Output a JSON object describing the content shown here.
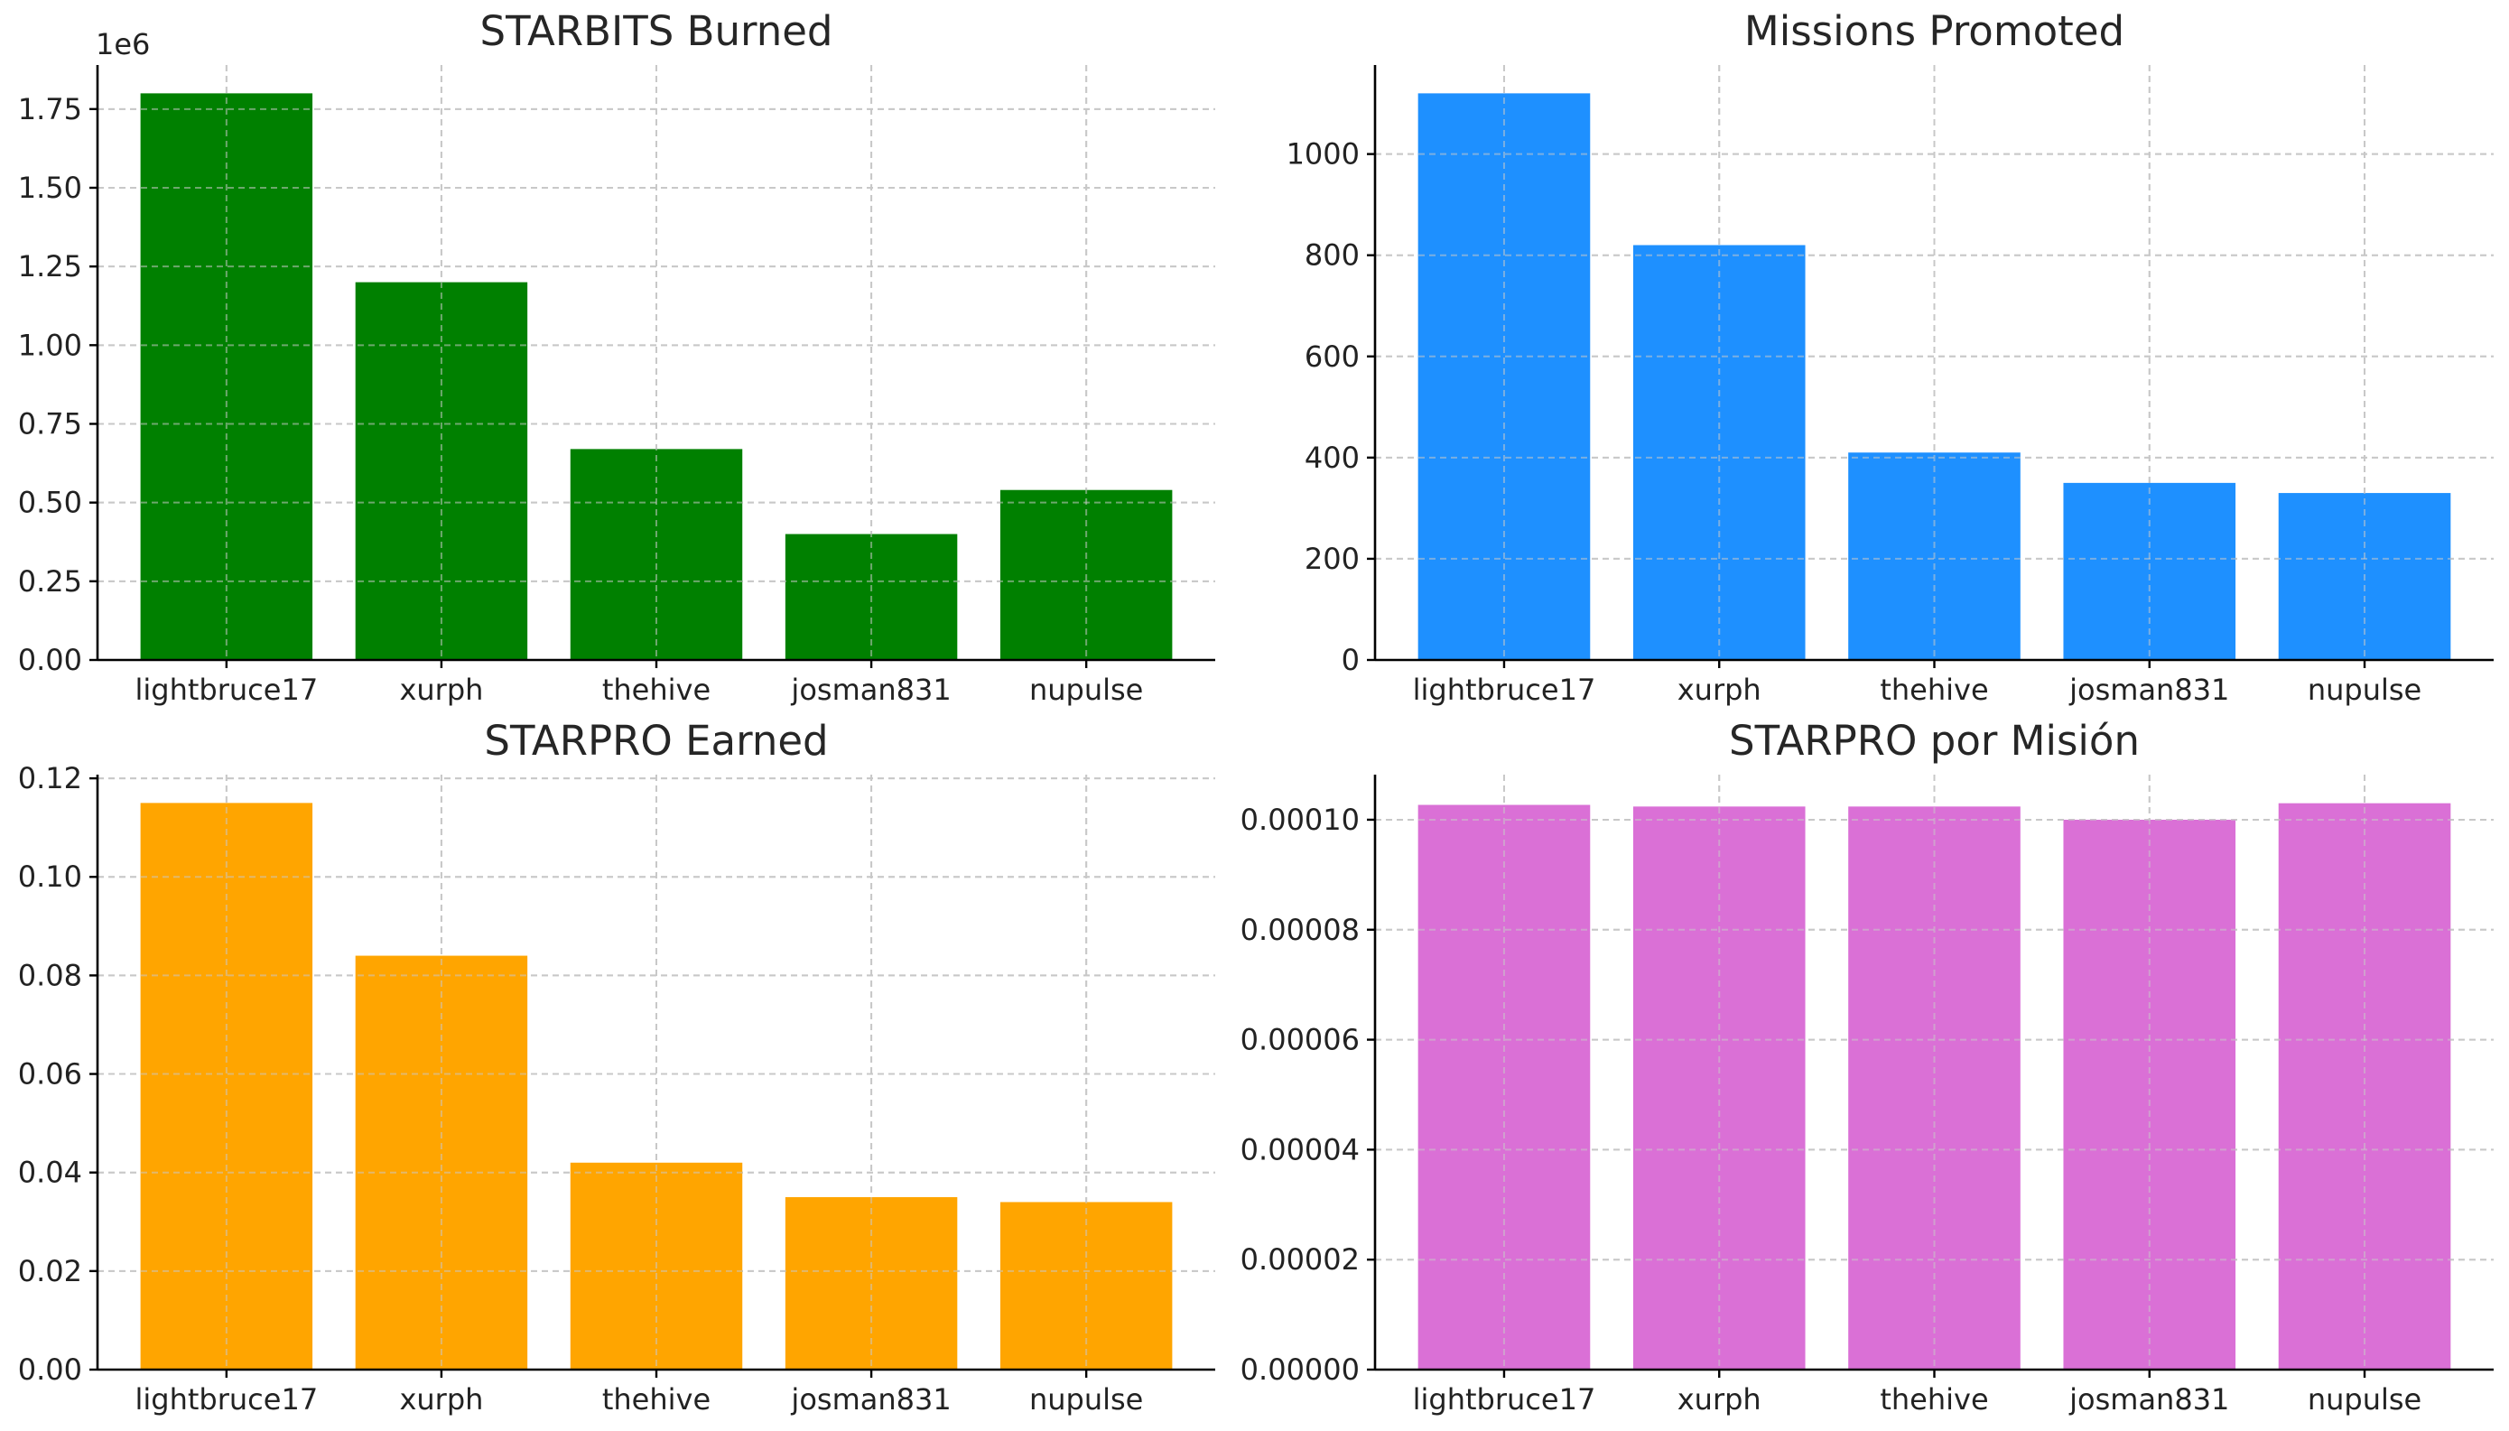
{
  "chart_data": [
    {
      "type": "bar",
      "title": "STARBITS Burned",
      "categories": [
        "lightbruce17",
        "xurph",
        "thehive",
        "josman831",
        "nupulse"
      ],
      "values": [
        1800000,
        1200000,
        670000,
        400000,
        540000
      ],
      "ylim": [
        0,
        1890000
      ],
      "yticks": [
        0,
        250000,
        500000,
        750000,
        1000000,
        1250000,
        1500000,
        1750000
      ],
      "ytick_labels": [
        "0.00",
        "0.25",
        "0.50",
        "0.75",
        "1.00",
        "1.25",
        "1.50",
        "1.75"
      ],
      "offset_label": "1e6",
      "color": "#008000",
      "grid": true
    },
    {
      "type": "bar",
      "title": "Missions Promoted",
      "categories": [
        "lightbruce17",
        "xurph",
        "thehive",
        "josman831",
        "nupulse"
      ],
      "values": [
        1120,
        820,
        410,
        350,
        330
      ],
      "ylim": [
        0,
        1176
      ],
      "yticks": [
        0,
        200,
        400,
        600,
        800,
        1000
      ],
      "ytick_labels": [
        "0",
        "200",
        "400",
        "600",
        "800",
        "1000"
      ],
      "color": "#1e90ff",
      "grid": true
    },
    {
      "type": "bar",
      "title": "STARPRO Earned",
      "categories": [
        "lightbruce17",
        "xurph",
        "thehive",
        "josman831",
        "nupulse"
      ],
      "values": [
        0.115,
        0.084,
        0.042,
        0.035,
        0.034
      ],
      "ylim": [
        0,
        0.12075
      ],
      "yticks": [
        0,
        0.02,
        0.04,
        0.06,
        0.08,
        0.1,
        0.12
      ],
      "ytick_labels": [
        "0.00",
        "0.02",
        "0.04",
        "0.06",
        "0.08",
        "0.10",
        "0.12"
      ],
      "color": "#ffa500",
      "grid": true
    },
    {
      "type": "bar",
      "title": "STARPRO por Misión",
      "categories": [
        "lightbruce17",
        "xurph",
        "thehive",
        "josman831",
        "nupulse"
      ],
      "values": [
        0.0001027,
        0.0001024,
        0.0001024,
        0.0001,
        0.000103
      ],
      "ylim": [
        0,
        0.0001082
      ],
      "yticks": [
        0,
        2e-05,
        4e-05,
        6e-05,
        8e-05,
        0.0001
      ],
      "ytick_labels": [
        "0.00000",
        "0.00002",
        "0.00004",
        "0.00006",
        "0.00008",
        "0.00010"
      ],
      "color": "#da70d6",
      "grid": true
    }
  ]
}
